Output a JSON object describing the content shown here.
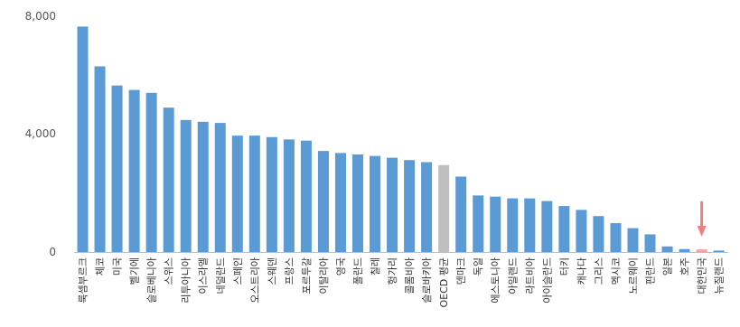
{
  "chart_data": {
    "type": "bar",
    "title": "",
    "xlabel": "",
    "ylabel": "",
    "ylim": [
      0,
      8000
    ],
    "yticks": [
      {
        "value": 0,
        "label": "0"
      },
      {
        "value": 4000,
        "label": "4,000"
      },
      {
        "value": 8000,
        "label": "8,000"
      }
    ],
    "grid": false,
    "categories": [
      "룩셈부르크",
      "체코",
      "미국",
      "벨기에",
      "슬로베니아",
      "스위스",
      "리투아니아",
      "이스라엘",
      "네덜란드",
      "스페인",
      "오스트리아",
      "스웨덴",
      "프랑스",
      "포르투갈",
      "이탈리아",
      "영국",
      "폴란드",
      "칠레",
      "헝가리",
      "콜롬비아",
      "슬로바키아",
      "OECD 평균",
      "덴마크",
      "독일",
      "에스토니아",
      "아일랜드",
      "라트비아",
      "아이슬란드",
      "터키",
      "캐나다",
      "그리스",
      "멕시코",
      "노르웨이",
      "핀란드",
      "일본",
      "호주",
      "대한민국",
      "뉴질랜드"
    ],
    "values": [
      7650,
      6300,
      5650,
      5500,
      5400,
      4900,
      4480,
      4420,
      4380,
      3950,
      3950,
      3900,
      3820,
      3780,
      3430,
      3360,
      3310,
      3260,
      3200,
      3120,
      3050,
      2950,
      2560,
      1920,
      1880,
      1820,
      1820,
      1730,
      1560,
      1430,
      1220,
      980,
      810,
      600,
      190,
      100,
      90,
      50
    ],
    "colors": {
      "default": "#5b9bd5",
      "oecd_average": "#bfbfbf",
      "korea": "#f4a6a6"
    },
    "annotation": {
      "type": "arrow",
      "target": "대한민국",
      "color": "#f08080"
    }
  }
}
